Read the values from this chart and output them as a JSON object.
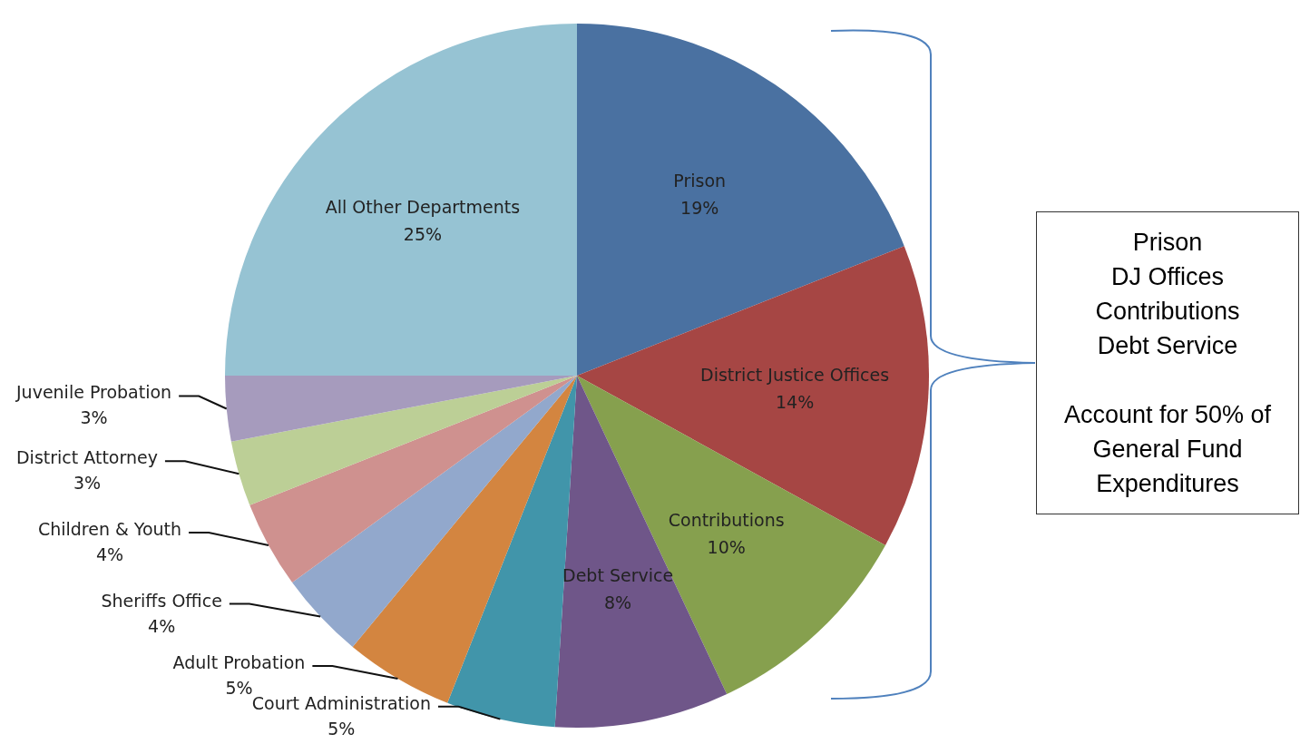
{
  "chart_data": {
    "type": "pie",
    "categories": [
      "Prison",
      "District Justice Offices",
      "Contributions",
      "Debt Service",
      "Court Administration",
      "Adult Probation",
      "Sheriffs Office",
      "Children & Youth",
      "District Attorney",
      "Juvenile Probation",
      "All Other Departments"
    ],
    "values": [
      19,
      14,
      10,
      8,
      5,
      5,
      4,
      4,
      3,
      3,
      25
    ],
    "value_labels": [
      "19%",
      "14%",
      "10%",
      "8%",
      "5%",
      "5%",
      "4%",
      "4%",
      "3%",
      "3%",
      "25%"
    ],
    "colors": [
      "#4a71a1",
      "#a64644",
      "#86a04e",
      "#6f5689",
      "#4195aa",
      "#d38540",
      "#92a8cc",
      "#cf918f",
      "#bccf96",
      "#a69bbd",
      "#96c3d3"
    ],
    "legend": false,
    "annotations": [
      "Prison",
      "DJ Offices",
      "Contributions",
      "Debt Service",
      "Account for 50% of General Fund Expenditures"
    ]
  }
}
